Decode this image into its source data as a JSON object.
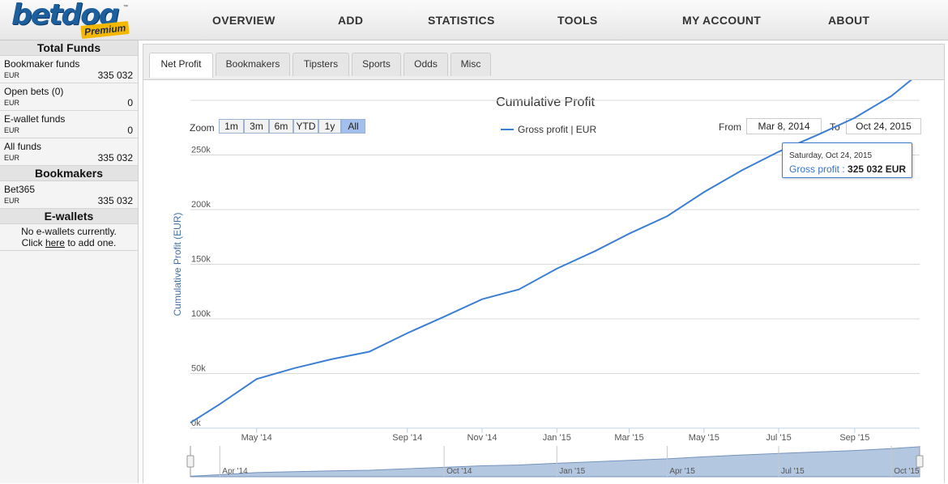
{
  "logo": {
    "word": "betdoq",
    "badge": "Premium",
    "tm": "™"
  },
  "nav": [
    "OVERVIEW",
    "ADD",
    "STATISTICS",
    "TOOLS",
    "MY ACCOUNT",
    "ABOUT"
  ],
  "sidebar": {
    "total_funds_title": "Total Funds",
    "funds": [
      {
        "label": "Bookmaker funds",
        "currency": "EUR",
        "amount": "335 032"
      },
      {
        "label": "Open bets (0)",
        "currency": "EUR",
        "amount": "0"
      },
      {
        "label": "E-wallet funds",
        "currency": "EUR",
        "amount": "0"
      },
      {
        "label": "All funds",
        "currency": "EUR",
        "amount": "335 032"
      }
    ],
    "bookmakers_title": "Bookmakers",
    "bookmakers": [
      {
        "label": "Bet365",
        "currency": "EUR",
        "amount": "335 032"
      }
    ],
    "ewallets_title": "E-wallets",
    "ewallets_note_line1": "No e-wallets currently.",
    "ewallets_note_pre": "Click ",
    "ewallets_note_link": "here",
    "ewallets_note_post": " to add one."
  },
  "tabs": [
    "Net Profit",
    "Bookmakers",
    "Tipsters",
    "Sports",
    "Odds",
    "Misc"
  ],
  "active_tab": "Net Profit",
  "controls": {
    "zoom_label": "Zoom",
    "zoom_buttons": [
      "1m",
      "3m",
      "6m",
      "YTD",
      "1y",
      "All"
    ],
    "zoom_selected": "All",
    "from_label": "From",
    "from_value": "Mar 8, 2014",
    "to_label": "To",
    "to_value": "Oct 24, 2015"
  },
  "tooltip": {
    "date": "Saturday, Oct 24, 2015",
    "series": "Gross profit",
    "value": "325 032 EUR"
  },
  "colors": {
    "line": "#3b7fd4",
    "navigator_fill": "#b4c7e0",
    "navigator_line": "#7593bd",
    "selected_zoom": "#a3c0ec"
  },
  "chart_data": {
    "type": "line",
    "title": "Cumulative Profit",
    "ylabel": "Cumulative Profit (EUR)",
    "xlabel": "",
    "ylim": [
      0,
      300000
    ],
    "y_ticks": [
      "0k",
      "50k",
      "100k",
      "150k",
      "200k",
      "250k"
    ],
    "y_tick_values": [
      0,
      50000,
      100000,
      150000,
      200000,
      250000
    ],
    "x_ticks": [
      "May '14",
      "Sep '14",
      "Nov '14",
      "Jan '15",
      "Mar '15",
      "May '15",
      "Jul '15",
      "Sep '15"
    ],
    "x_tick_dates": [
      "2014-05-01",
      "2014-09-01",
      "2014-11-01",
      "2015-01-01",
      "2015-03-01",
      "2015-05-01",
      "2015-07-01",
      "2015-09-01"
    ],
    "navigator_ticks": [
      "Apr '14",
      "Oct '14",
      "Jan '15",
      "Apr '15",
      "Jul '15",
      "Oct '15"
    ],
    "navigator_tick_dates": [
      "2014-04-01",
      "2014-10-01",
      "2015-01-01",
      "2015-04-01",
      "2015-07-01",
      "2015-10-01"
    ],
    "x_range": [
      "2014-03-08",
      "2015-10-24"
    ],
    "legend": "top-center",
    "grid": true,
    "series": [
      {
        "name": "Gross profit | EUR",
        "points": [
          [
            "2014-03-08",
            5000
          ],
          [
            "2014-04-01",
            22000
          ],
          [
            "2014-05-01",
            45000
          ],
          [
            "2014-06-01",
            55000
          ],
          [
            "2014-07-01",
            63000
          ],
          [
            "2014-08-01",
            70000
          ],
          [
            "2014-09-01",
            87000
          ],
          [
            "2014-10-01",
            102000
          ],
          [
            "2014-11-01",
            118000
          ],
          [
            "2014-12-01",
            127000
          ],
          [
            "2015-01-01",
            146000
          ],
          [
            "2015-02-01",
            162000
          ],
          [
            "2015-03-01",
            178000
          ],
          [
            "2015-04-01",
            194000
          ],
          [
            "2015-05-01",
            216000
          ],
          [
            "2015-06-01",
            236000
          ],
          [
            "2015-07-01",
            253000
          ],
          [
            "2015-08-01",
            268000
          ],
          [
            "2015-09-01",
            284000
          ],
          [
            "2015-10-01",
            304000
          ],
          [
            "2015-10-24",
            325032
          ]
        ]
      }
    ]
  }
}
